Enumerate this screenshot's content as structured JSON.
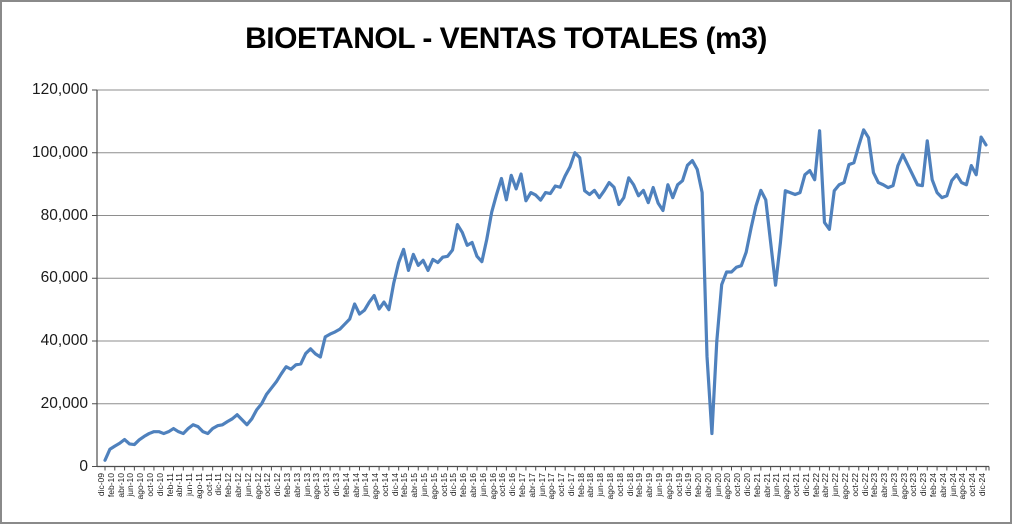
{
  "chart_data": {
    "type": "line",
    "title": "BIOETANOL - VENTAS TOTALES (m3)",
    "unit": "m3",
    "grid": true,
    "legend": false,
    "ylim": [
      0,
      120000
    ],
    "y_tick_step": 20000,
    "y_tick_labels": [
      "0",
      "20,000",
      "40,000",
      "60,000",
      "80,000",
      "100,000",
      "120,000"
    ],
    "x_first": "dic-09",
    "x_last": "dic-24",
    "months_between_points": 1,
    "ticks_every_n_points": 2,
    "x_tick_labels": [
      "dic-09",
      "feb-10",
      "abr-10",
      "jun-10",
      "ago-10",
      "oct-10",
      "dic-10",
      "feb-11",
      "abr-11",
      "jun-11",
      "ago-11",
      "oct-11",
      "dic-11",
      "feb-12",
      "abr-12",
      "jun-12",
      "ago-12",
      "oct-12",
      "dic-12",
      "feb-13",
      "abr-13",
      "jun-13",
      "ago-13",
      "oct-13",
      "dic-13",
      "feb-14",
      "abr-14",
      "jun-14",
      "ago-14",
      "oct-14",
      "dic-14",
      "feb-15",
      "abr-15",
      "jun-15",
      "ago-15",
      "oct-15",
      "dic-15",
      "feb-16",
      "abr-16",
      "jun-16",
      "ago-16",
      "oct-16",
      "dic-16",
      "feb-17",
      "abr-17",
      "jun-17",
      "ago-17",
      "oct-17",
      "dic-17",
      "feb-18",
      "abr-18",
      "jun-18",
      "ago-18",
      "oct-18",
      "dic-18",
      "feb-19",
      "abr-19",
      "jun-19",
      "ago-19",
      "oct-19",
      "dic-19",
      "feb-20",
      "abr-20",
      "jun-20",
      "ago-20",
      "oct-20",
      "dic-20",
      "feb-21",
      "abr-21",
      "jun-21",
      "ago-21",
      "oct-21",
      "dic-21",
      "feb-22",
      "abr-22",
      "jun-22",
      "ago-22",
      "oct-22",
      "dic-22",
      "feb-23",
      "abr-23",
      "jun-23",
      "ago-23",
      "oct-23",
      "dic-23",
      "feb-24",
      "abr-24",
      "jun-24",
      "ago-24",
      "oct-24",
      "dic-24"
    ],
    "values": [
      2000,
      5500,
      6500,
      7400,
      8600,
      7200,
      7000,
      8500,
      9600,
      10500,
      11100,
      11100,
      10500,
      11100,
      12100,
      11100,
      10500,
      12100,
      13300,
      12700,
      11100,
      10500,
      12100,
      13000,
      13300,
      14300,
      15200,
      16500,
      14900,
      13300,
      15200,
      18100,
      20000,
      23000,
      25000,
      27000,
      29500,
      31800,
      31000,
      32400,
      32700,
      36000,
      37500,
      35900,
      34900,
      41300,
      42200,
      42900,
      43800,
      45400,
      47000,
      51800,
      48600,
      49800,
      52400,
      54500,
      50200,
      52400,
      50000,
      58500,
      65000,
      69200,
      62500,
      67600,
      64100,
      65700,
      62500,
      66000,
      65000,
      66700,
      67000,
      69000,
      77100,
      74600,
      70500,
      71400,
      67000,
      65300,
      72400,
      81000,
      86700,
      91800,
      85000,
      92800,
      88500,
      93200,
      84700,
      87300,
      86500,
      84900,
      87300,
      87000,
      89400,
      89000,
      92600,
      95500,
      100000,
      98400,
      87900,
      86700,
      88000,
      85700,
      87900,
      90500,
      89000,
      83500,
      85700,
      92000,
      89800,
      86300,
      88000,
      84100,
      88900,
      84000,
      81600,
      89800,
      85700,
      89800,
      91100,
      96000,
      97500,
      94700,
      87300,
      35000,
      10500,
      40000,
      58000,
      62000,
      62000,
      63500,
      64000,
      68300,
      76000,
      83000,
      88000,
      85000,
      71400,
      57800,
      71400,
      87900,
      87300,
      86700,
      87300,
      93000,
      94300,
      91400,
      107000,
      77800,
      75600,
      87900,
      89800,
      90500,
      96200,
      96800,
      102200,
      107300,
      104800,
      93700,
      90500,
      89800,
      88900,
      89500,
      95900,
      99400,
      96200,
      93000,
      89800,
      89500,
      103800,
      91400,
      87300,
      85700,
      86300,
      91100,
      93000,
      90500,
      89800,
      95900,
      93000,
      105000,
      102500
    ],
    "line_color": "#4F81BD",
    "grid_color": "#8E8E8E",
    "axis_color": "#4D4D4D",
    "border_color": "#8A8A8A",
    "background_color": "#FFFFFF"
  }
}
